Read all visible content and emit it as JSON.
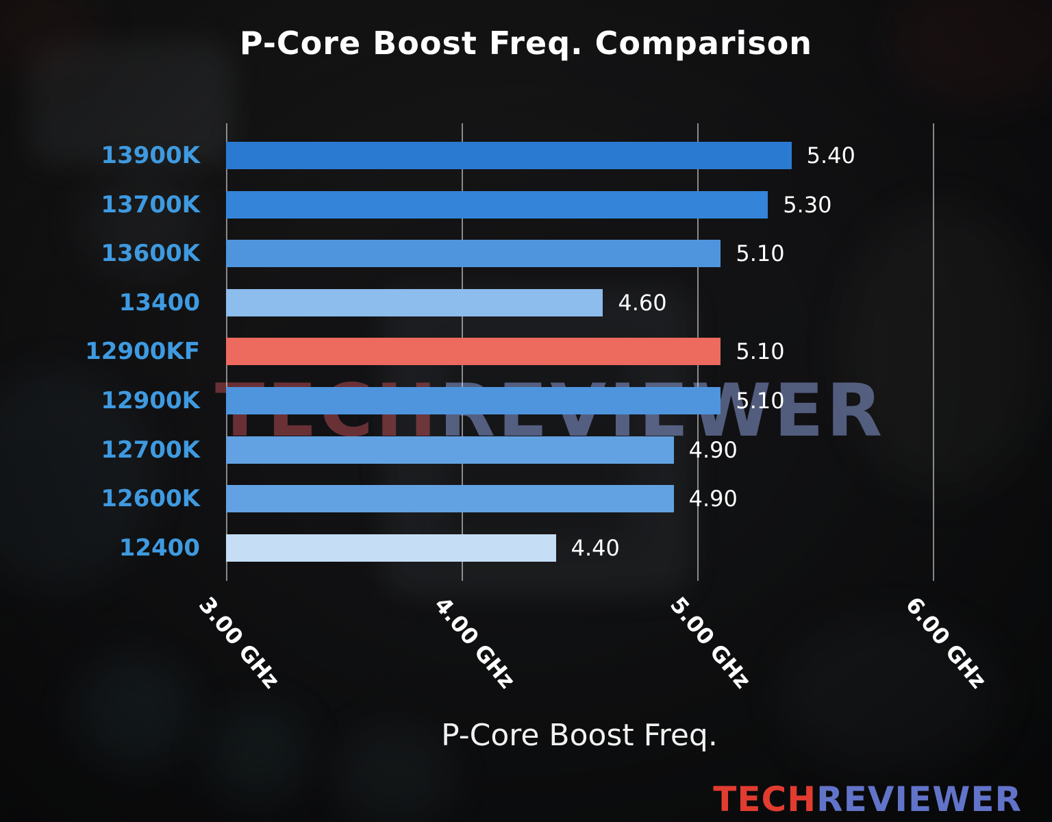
{
  "chart_data": {
    "type": "bar",
    "orientation": "horizontal",
    "title": "P-Core Boost Freq. Comparison",
    "xlabel": "P-Core Boost Freq.",
    "xlim": [
      3.0,
      6.0
    ],
    "grid": true,
    "categories": [
      "13900K",
      "13700K",
      "13600K",
      "13400",
      "12900KF",
      "12900K",
      "12700K",
      "12600K",
      "12400"
    ],
    "values": [
      5.4,
      5.3,
      5.1,
      4.6,
      5.1,
      5.1,
      4.9,
      4.9,
      4.4
    ],
    "value_labels": [
      "5.40",
      "5.30",
      "5.10",
      "4.60",
      "5.10",
      "5.10",
      "4.90",
      "4.90",
      "4.40"
    ],
    "bar_colors": [
      "#2a7ad2",
      "#3484d9",
      "#4e95de",
      "#8cbdec",
      "#ec6a5e",
      "#4e95de",
      "#63a2e2",
      "#63a2e2",
      "#c5def5"
    ],
    "highlight_category": "12900KF",
    "highlight_color": "#ec6a5e",
    "xticks": [
      "3.00 GHz",
      "4.00 GHz",
      "5.00 GHz",
      "6.00 GHz"
    ],
    "xtick_values": [
      3.0,
      4.0,
      5.0,
      6.0
    ],
    "category_label_color": "#3f9ae0",
    "value_label_color": "#ffffff",
    "gridline_color": "#eeeeee",
    "legend": "none"
  },
  "watermark": {
    "tech": "TECH",
    "reviewer": "REVIEWER",
    "tech_color": "rgba(192, 80, 88, 0.5)",
    "reviewer_color": "rgba(147, 168, 232, 0.5)"
  },
  "branding": {
    "tech": "TECH",
    "reviewer": "REVIEWER",
    "tech_color": "#e23c30",
    "reviewer_color": "#6274c9"
  }
}
